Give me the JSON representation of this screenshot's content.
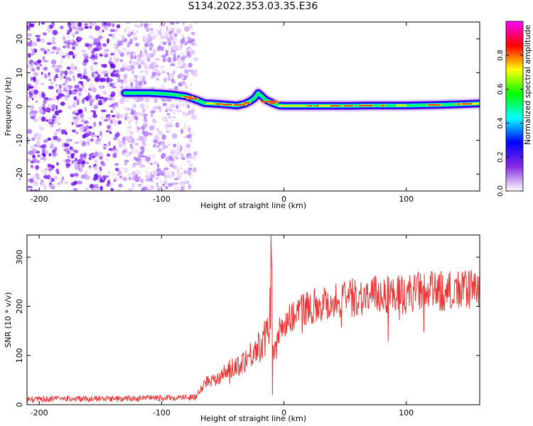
{
  "title": "S134.2022.353.03.35.E36",
  "chart_data": [
    {
      "type": "heatmap",
      "xlabel": "Height of straight line (km)",
      "ylabel": "Frequency (Hz)",
      "xlim": [
        -210,
        160
      ],
      "ylim": [
        -25,
        25
      ],
      "xticks": [
        -200,
        -100,
        0,
        100
      ],
      "yticks": [
        -20,
        -10,
        0,
        10,
        20
      ],
      "colorbar": {
        "label": "Normalized spectral amplitude",
        "ticks": [
          "0.0",
          "0.2",
          "0.4",
          "0.6",
          "0.8"
        ],
        "colors": [
          "#ffffff",
          "#8a2be2",
          "#0000ff",
          "#00ffff",
          "#00ff00",
          "#ffff00",
          "#ff0000",
          "#ff00ff"
        ]
      },
      "ridge": {
        "x": [
          -130,
          -110,
          -100,
          -90,
          -80,
          -72,
          -65,
          -55,
          -45,
          -38,
          -32,
          -28,
          -24,
          -21,
          -18,
          -15,
          -12,
          -8,
          -4,
          0,
          20,
          40,
          55,
          70,
          85,
          100,
          115,
          130,
          145,
          160
        ],
        "y": [
          4.0,
          4.0,
          3.8,
          3.5,
          3.0,
          2.0,
          1.0,
          0.8,
          0.5,
          0.3,
          0.8,
          1.5,
          2.5,
          4.0,
          3.0,
          2.0,
          1.5,
          0.8,
          0.3,
          0.2,
          0.2,
          0.2,
          0.2,
          0.3,
          0.3,
          0.3,
          0.4,
          0.5,
          0.7,
          0.9
        ]
      },
      "noise_region_x": [
        -210,
        -72
      ]
    },
    {
      "type": "line",
      "xlabel": "Height of straight line (km)",
      "ylabel": "SNR (10 * v/v)",
      "xlim": [
        -210,
        160
      ],
      "ylim": [
        0,
        345
      ],
      "xticks": [
        -200,
        -100,
        0,
        100
      ],
      "yticks": [
        0,
        100,
        200,
        300
      ],
      "color": "#ee3333",
      "series": [
        {
          "x": [
            -210,
            -190,
            -170,
            -150,
            -130,
            -110,
            -90,
            -80,
            -72,
            -65,
            -55,
            -45,
            -35,
            -28,
            -22,
            -18,
            -14,
            -12,
            -10.5,
            -9,
            -7,
            -4,
            0,
            5,
            10,
            20,
            30,
            40,
            50,
            60,
            70,
            80,
            90,
            100,
            110,
            120,
            130,
            140,
            150,
            160
          ],
          "y": [
            10,
            12,
            12,
            12,
            12,
            13,
            14,
            15,
            15,
            45,
            55,
            70,
            85,
            100,
            115,
            125,
            140,
            150,
            345,
            120,
            110,
            150,
            165,
            175,
            190,
            200,
            205,
            210,
            215,
            220,
            220,
            225,
            225,
            225,
            230,
            230,
            230,
            232,
            232,
            235
          ]
        }
      ]
    }
  ]
}
